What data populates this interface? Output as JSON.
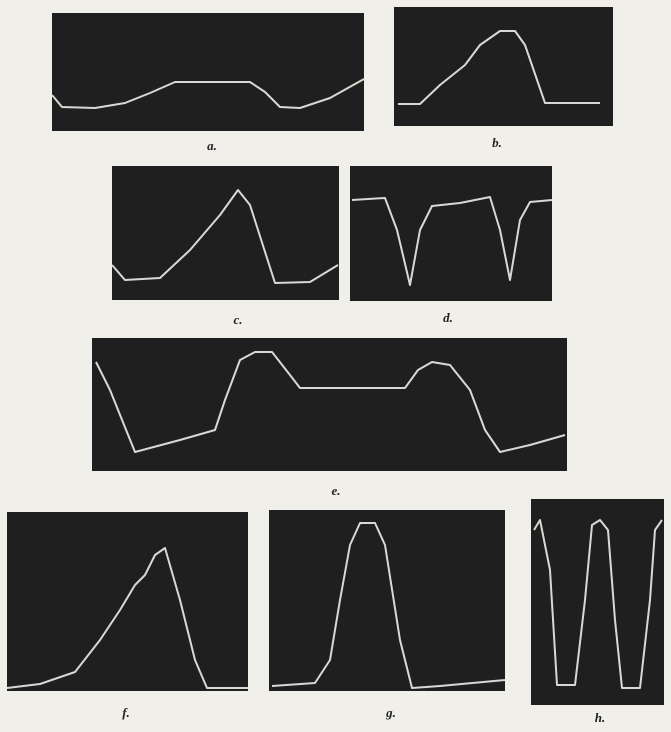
{
  "panels": [
    {
      "label": "a."
    },
    {
      "label": "b."
    },
    {
      "label": "c."
    },
    {
      "label": "d."
    },
    {
      "label": "e."
    },
    {
      "label": "f."
    },
    {
      "label": "g."
    },
    {
      "label": "h."
    }
  ]
}
